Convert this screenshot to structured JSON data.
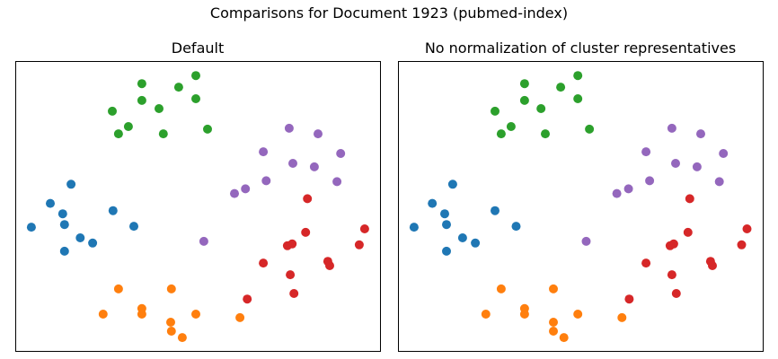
{
  "figure": {
    "suptitle": "Comparisons for Document 1923 (pubmed-index)"
  },
  "colors": {
    "blue": "#1f77b4",
    "orange": "#ff7f0e",
    "green": "#2ca02c",
    "red": "#d62728",
    "purple": "#9467bd"
  },
  "chart_data": [
    {
      "type": "scatter",
      "title": "Default",
      "xlabel": "",
      "ylabel": "",
      "axes": false,
      "xlim": [
        0,
        100
      ],
      "ylim": [
        0,
        100
      ],
      "series": [
        {
          "color": "#1f77b4",
          "points": [
            [
              15.3,
              57.5
            ],
            [
              9.6,
              50.9
            ],
            [
              13.0,
              47.3
            ],
            [
              13.5,
              43.6
            ],
            [
              26.8,
              48.4
            ],
            [
              32.5,
              43.0
            ],
            [
              4.4,
              42.7
            ],
            [
              17.8,
              39.0
            ],
            [
              21.2,
              37.2
            ],
            [
              13.5,
              34.4
            ]
          ]
        },
        {
          "color": "#ff7f0e",
          "points": [
            [
              28.3,
              21.4
            ],
            [
              42.8,
              21.4
            ],
            [
              24.1,
              12.7
            ],
            [
              34.7,
              14.6
            ],
            [
              34.7,
              12.7
            ],
            [
              49.5,
              12.7
            ],
            [
              42.6,
              9.9
            ],
            [
              61.6,
              11.5
            ],
            [
              42.8,
              6.8
            ],
            [
              45.8,
              4.6
            ]
          ]
        },
        {
          "color": "#2ca02c",
          "points": [
            [
              49.5,
              95.0
            ],
            [
              34.7,
              92.2
            ],
            [
              44.8,
              91.0
            ],
            [
              34.7,
              86.4
            ],
            [
              49.5,
              87.0
            ],
            [
              26.6,
              82.7
            ],
            [
              39.4,
              83.6
            ],
            [
              31.0,
              77.4
            ],
            [
              28.3,
              74.9
            ],
            [
              40.6,
              74.9
            ],
            [
              52.7,
              76.5
            ]
          ]
        },
        {
          "color": "#d62728",
          "points": [
            [
              80.1,
              52.5
            ],
            [
              95.8,
              42.1
            ],
            [
              79.6,
              40.9
            ],
            [
              75.9,
              36.9
            ],
            [
              74.6,
              36.3
            ],
            [
              94.3,
              36.6
            ],
            [
              68.0,
              30.3
            ],
            [
              85.7,
              30.9
            ],
            [
              86.2,
              29.4
            ],
            [
              75.4,
              26.3
            ],
            [
              76.4,
              19.8
            ],
            [
              63.6,
              17.9
            ]
          ]
        },
        {
          "color": "#9467bd",
          "points": [
            [
              75.1,
              76.8
            ],
            [
              83.0,
              74.9
            ],
            [
              68.0,
              68.7
            ],
            [
              76.1,
              64.7
            ],
            [
              82.0,
              63.5
            ],
            [
              89.2,
              68.1
            ],
            [
              68.8,
              58.7
            ],
            [
              63.1,
              55.9
            ],
            [
              60.1,
              54.3
            ],
            [
              88.2,
              58.4
            ],
            [
              51.7,
              37.8
            ]
          ]
        }
      ]
    },
    {
      "type": "scatter",
      "title": "No normalization of cluster representatives",
      "xlabel": "",
      "ylabel": "",
      "axes": false,
      "xlim": [
        0,
        100
      ],
      "ylim": [
        0,
        100
      ],
      "series": [
        {
          "color": "#1f77b4",
          "points": [
            [
              15.0,
              57.5
            ],
            [
              9.4,
              50.9
            ],
            [
              12.8,
              47.3
            ],
            [
              13.3,
              43.6
            ],
            [
              26.6,
              48.4
            ],
            [
              32.4,
              43.0
            ],
            [
              4.4,
              42.7
            ],
            [
              17.7,
              39.0
            ],
            [
              21.2,
              37.2
            ],
            [
              13.3,
              34.4
            ]
          ]
        },
        {
          "color": "#ff7f0e",
          "points": [
            [
              28.3,
              21.4
            ],
            [
              42.6,
              21.4
            ],
            [
              24.1,
              12.7
            ],
            [
              34.7,
              14.6
            ],
            [
              34.7,
              12.7
            ],
            [
              49.3,
              12.7
            ],
            [
              42.6,
              9.9
            ],
            [
              61.4,
              11.5
            ],
            [
              42.6,
              6.8
            ],
            [
              45.5,
              4.6
            ]
          ]
        },
        {
          "color": "#2ca02c",
          "points": [
            [
              49.3,
              95.0
            ],
            [
              34.7,
              92.2
            ],
            [
              44.6,
              91.0
            ],
            [
              34.7,
              86.4
            ],
            [
              49.3,
              87.0
            ],
            [
              26.6,
              82.7
            ],
            [
              39.2,
              83.6
            ],
            [
              28.3,
              74.9
            ],
            [
              31.0,
              77.4
            ],
            [
              40.4,
              74.9
            ],
            [
              52.5,
              76.5
            ]
          ]
        },
        {
          "color": "#d62728",
          "points": [
            [
              80.0,
              52.5
            ],
            [
              95.7,
              42.1
            ],
            [
              79.5,
              40.9
            ],
            [
              75.6,
              36.9
            ],
            [
              74.6,
              36.3
            ],
            [
              94.2,
              36.6
            ],
            [
              68.0,
              30.3
            ],
            [
              85.7,
              30.9
            ],
            [
              86.2,
              29.4
            ],
            [
              75.1,
              26.3
            ],
            [
              76.3,
              19.8
            ],
            [
              63.4,
              17.9
            ]
          ]
        },
        {
          "color": "#9467bd",
          "points": [
            [
              75.1,
              76.8
            ],
            [
              83.0,
              74.9
            ],
            [
              68.0,
              68.7
            ],
            [
              76.1,
              64.7
            ],
            [
              82.0,
              63.5
            ],
            [
              89.2,
              68.1
            ],
            [
              69.0,
              58.7
            ],
            [
              63.2,
              55.9
            ],
            [
              60.0,
              54.3
            ],
            [
              88.1,
              58.4
            ],
            [
              51.6,
              37.8
            ]
          ]
        }
      ]
    }
  ]
}
